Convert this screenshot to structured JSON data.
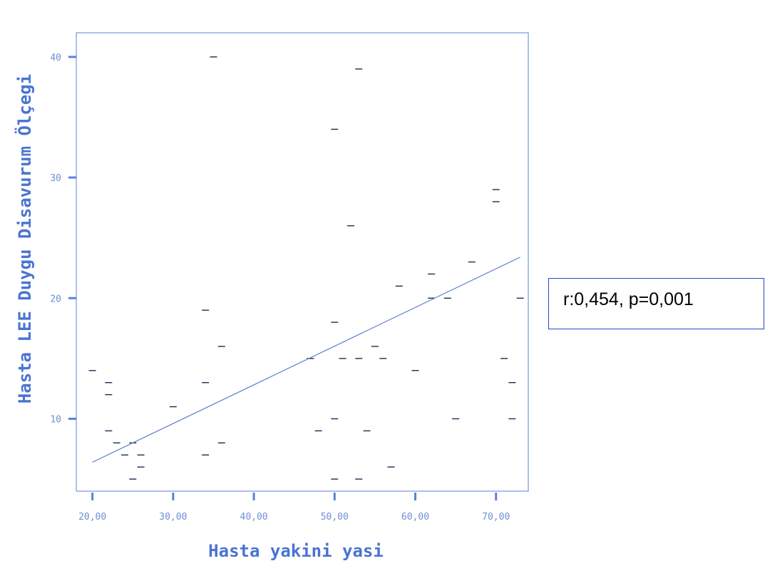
{
  "chart_data": {
    "type": "scatter",
    "xlabel": "Hasta yakini yasi",
    "ylabel": "Hasta LEE Duygu Disavurum Ölçegi",
    "xlim": [
      18,
      74
    ],
    "ylim": [
      4,
      42
    ],
    "x_ticks": [
      {
        "value": 20,
        "label": "20,00"
      },
      {
        "value": 30,
        "label": "30,00"
      },
      {
        "value": 40,
        "label": "40,00"
      },
      {
        "value": 50,
        "label": "50,00"
      },
      {
        "value": 60,
        "label": "60,00"
      },
      {
        "value": 70,
        "label": "70,00"
      }
    ],
    "y_ticks": [
      {
        "value": 10,
        "label": "10"
      },
      {
        "value": 20,
        "label": "20"
      },
      {
        "value": 30,
        "label": "30"
      },
      {
        "value": 40,
        "label": "40"
      }
    ],
    "points": [
      {
        "x": 20,
        "y": 14
      },
      {
        "x": 22,
        "y": 13
      },
      {
        "x": 22,
        "y": 12
      },
      {
        "x": 22,
        "y": 9
      },
      {
        "x": 23,
        "y": 8
      },
      {
        "x": 24,
        "y": 7
      },
      {
        "x": 25,
        "y": 8
      },
      {
        "x": 25,
        "y": 5
      },
      {
        "x": 26,
        "y": 7
      },
      {
        "x": 26,
        "y": 6
      },
      {
        "x": 30,
        "y": 11
      },
      {
        "x": 34,
        "y": 19
      },
      {
        "x": 34,
        "y": 13
      },
      {
        "x": 34,
        "y": 7
      },
      {
        "x": 35,
        "y": 40
      },
      {
        "x": 36,
        "y": 16
      },
      {
        "x": 36,
        "y": 8
      },
      {
        "x": 47,
        "y": 15
      },
      {
        "x": 48,
        "y": 9
      },
      {
        "x": 50,
        "y": 34
      },
      {
        "x": 50,
        "y": 18
      },
      {
        "x": 50,
        "y": 10
      },
      {
        "x": 50,
        "y": 5
      },
      {
        "x": 51,
        "y": 15
      },
      {
        "x": 52,
        "y": 26
      },
      {
        "x": 53,
        "y": 39
      },
      {
        "x": 53,
        "y": 15
      },
      {
        "x": 53,
        "y": 5
      },
      {
        "x": 54,
        "y": 9
      },
      {
        "x": 55,
        "y": 16
      },
      {
        "x": 56,
        "y": 15
      },
      {
        "x": 57,
        "y": 6
      },
      {
        "x": 58,
        "y": 21
      },
      {
        "x": 60,
        "y": 14
      },
      {
        "x": 62,
        "y": 22
      },
      {
        "x": 62,
        "y": 20
      },
      {
        "x": 64,
        "y": 20
      },
      {
        "x": 65,
        "y": 10
      },
      {
        "x": 67,
        "y": 23
      },
      {
        "x": 70,
        "y": 29
      },
      {
        "x": 70,
        "y": 28
      },
      {
        "x": 71,
        "y": 15
      },
      {
        "x": 72,
        "y": 13
      },
      {
        "x": 72,
        "y": 10
      },
      {
        "x": 73,
        "y": 20
      }
    ],
    "fit_line": {
      "x1": 20,
      "y1": 6.4,
      "x2": 73,
      "y2": 23.4
    },
    "annotation": "r:0,454, p=0,001",
    "colors": {
      "axis": "#5b82d9",
      "tick_label": "#6f8fd6",
      "title": "#4a74d2",
      "marker": "#1d2b57",
      "fit": "#5b7fd0",
      "box_border": "#2a46c8"
    },
    "grid": false
  }
}
